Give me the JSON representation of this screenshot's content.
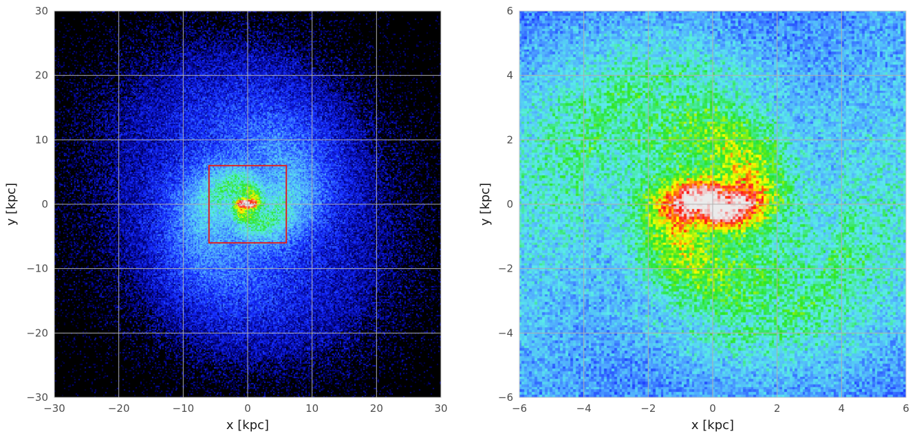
{
  "chart_data": [
    {
      "type": "heatmap",
      "title": "",
      "xlabel": "x [kpc]",
      "ylabel": "y [kpc]",
      "xlim": [
        -30,
        30
      ],
      "ylim": [
        -30,
        30
      ],
      "xticks": [
        "−30",
        "−20",
        "−10",
        "0",
        "10",
        "20",
        "30"
      ],
      "xtick_values": [
        -30,
        -20,
        -10,
        0,
        10,
        20,
        30
      ],
      "yticks": [
        "−30",
        "−20",
        "−10",
        "0",
        "10",
        "20",
        "30"
      ],
      "ytick_values": [
        -30,
        -20,
        -10,
        0,
        10,
        20,
        30
      ],
      "grid": true,
      "colormap": "black-blue-cyan-green-yellow-red-white (jet-like)",
      "background_color": "#000000",
      "description_shape": "face-on spiral galaxy stellar density, bright elliptical core",
      "bins": 300,
      "core_scale": [
        1.3,
        0.55
      ],
      "zoom_box": {
        "x": [
          -6,
          6
        ],
        "y": [
          -6,
          6
        ],
        "color": "#e02020"
      }
    },
    {
      "type": "heatmap",
      "title": "",
      "xlabel": "x [kpc]",
      "ylabel": "y [kpc]",
      "xlim": [
        -6,
        6
      ],
      "ylim": [
        -6,
        6
      ],
      "xticks": [
        "−6",
        "−4",
        "−2",
        "0",
        "2",
        "4",
        "6"
      ],
      "xtick_values": [
        -6,
        -4,
        -2,
        0,
        2,
        4,
        6
      ],
      "yticks": [
        "−6",
        "−4",
        "−2",
        "0",
        "2",
        "4",
        "6"
      ],
      "ytick_values": [
        -6,
        -4,
        -2,
        0,
        2,
        4,
        6
      ],
      "grid": true,
      "colormap": "black-blue-cyan-green-yellow-red-white (jet-like)",
      "background_color": "#000000",
      "bins": 150,
      "core_scale": [
        1.3,
        0.55
      ]
    }
  ],
  "colors": {
    "grid": "#b0b0b0",
    "zoom_box": "#e02020",
    "ticks": "#4d4d4d"
  }
}
